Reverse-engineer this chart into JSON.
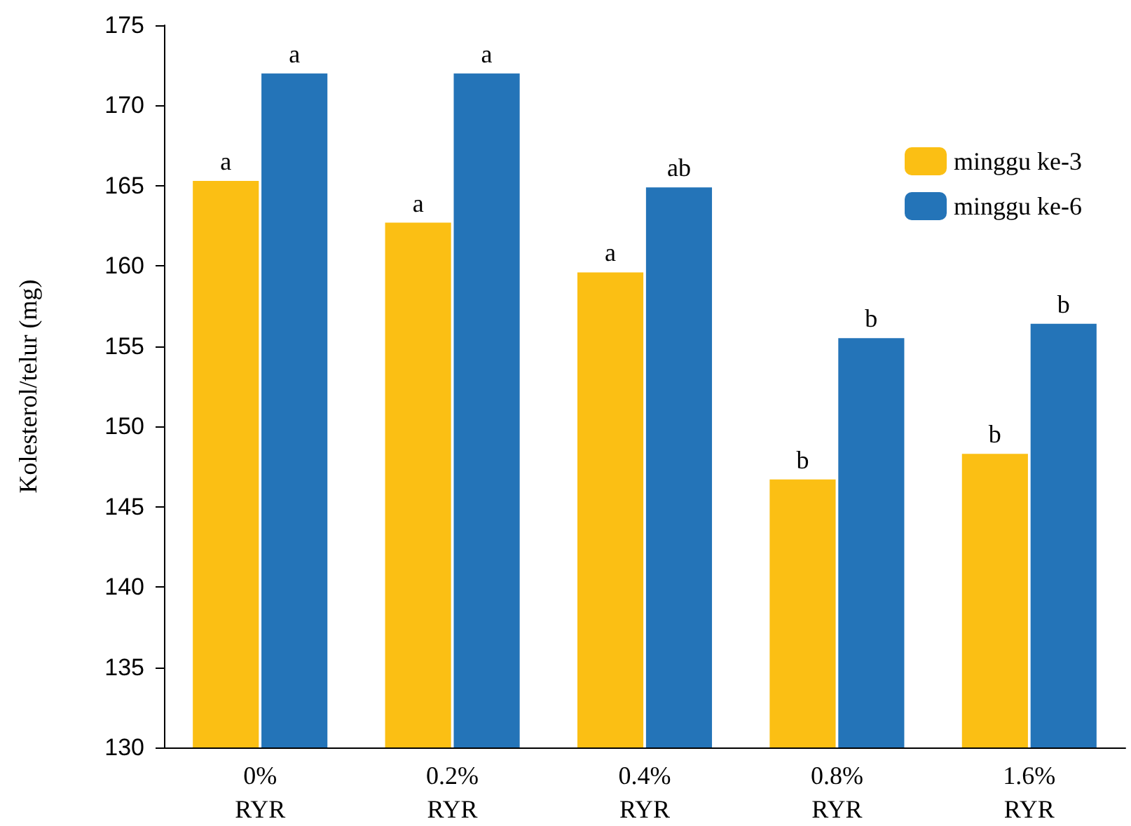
{
  "chart_data": {
    "type": "bar",
    "ylabel": "Kolesterol/telur (mg)",
    "categories": [
      "0%\nRYR",
      "0.2%\nRYR",
      "0.4%\nRYR",
      "0.8%\nRYR",
      "1.6%\nRYR"
    ],
    "series": [
      {
        "name": "minggu ke-3",
        "color": "#fbbf14",
        "values": [
          165.3,
          162.7,
          159.6,
          146.7,
          148.3
        ],
        "value_labels": [
          "a",
          "a",
          "a",
          "b",
          "b"
        ]
      },
      {
        "name": "minggu ke-6",
        "color": "#2474b8",
        "values": [
          172.0,
          172.0,
          164.9,
          155.5,
          156.4
        ],
        "value_labels": [
          "a",
          "a",
          "ab",
          "b",
          "b"
        ]
      }
    ],
    "ylim": [
      130,
      175
    ],
    "yticks": [
      130,
      135,
      140,
      145,
      150,
      155,
      160,
      165,
      170,
      175
    ],
    "grid": false,
    "legend": "top right"
  }
}
